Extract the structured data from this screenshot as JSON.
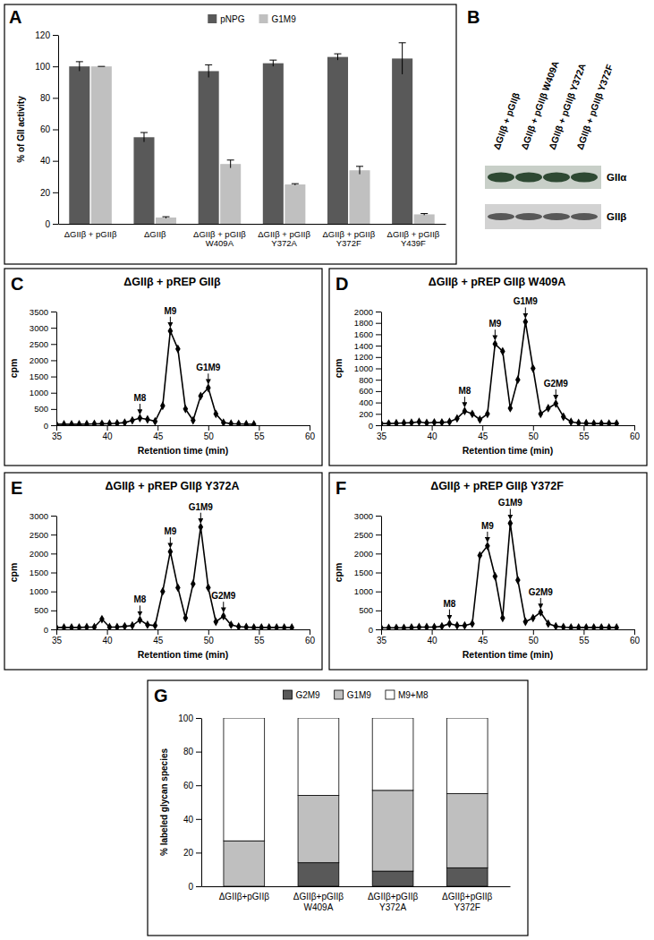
{
  "chart_data": [
    {
      "type": "bar",
      "panel": "A",
      "categories": [
        "ΔGIIβ + pGIIβ",
        "ΔGIIβ",
        "ΔGIIβ + pGIIβ W409A",
        "ΔGIIβ + pGIIβ Y372A",
        "ΔGIIβ + pGIIβ Y372F",
        "ΔGIIβ + pGIIβ Y439F"
      ],
      "series": [
        {
          "name": "pNPG",
          "color": "#595959",
          "values": [
            100,
            55,
            97,
            102,
            106,
            105
          ],
          "errors": [
            3,
            3,
            4,
            2,
            2,
            10
          ]
        },
        {
          "name": "G1M9",
          "color": "#c0c0c0",
          "values": [
            100,
            4,
            38,
            25,
            34,
            6
          ],
          "errors": [
            0,
            0.5,
            2.5,
            0.5,
            2.5,
            0.5
          ]
        }
      ],
      "y_label": "% of GII activity",
      "ylim": [
        0,
        120
      ],
      "yticks": [
        0,
        20,
        40,
        60,
        80,
        100,
        120
      ],
      "legend": "top"
    },
    {
      "type": "line",
      "panel": "C",
      "title": "ΔGIIβ + pREP GIIβ",
      "x": [
        35,
        35.75,
        36.5,
        37.25,
        38,
        38.75,
        39.5,
        40.25,
        41,
        41.75,
        42.5,
        43.25,
        44,
        44.75,
        45.5,
        46.25,
        47,
        47.75,
        48.5,
        49.25,
        50,
        50.75,
        51.5,
        52.25,
        53,
        53.75,
        54.5
      ],
      "series": [
        {
          "color": "#000000",
          "marker": "diamond",
          "values": [
            30,
            30,
            30,
            30,
            35,
            40,
            45,
            50,
            60,
            80,
            150,
            220,
            180,
            120,
            600,
            2900,
            2350,
            500,
            150,
            900,
            1150,
            350,
            80,
            50,
            40,
            35,
            30
          ]
        }
      ],
      "x_label": "Retention time (min)",
      "y_label": "cpm",
      "xlim": [
        35,
        60
      ],
      "xticks": [
        35,
        40,
        45,
        50,
        55,
        60
      ],
      "ylim": [
        0,
        3500
      ],
      "yticks": [
        0,
        500,
        1000,
        1500,
        2000,
        2500,
        3000,
        3500
      ],
      "peaks": [
        {
          "label": "M8",
          "x": 43.25
        },
        {
          "label": "M9",
          "x": 46.25
        },
        {
          "label": "G1M9",
          "x": 50
        }
      ]
    },
    {
      "type": "line",
      "panel": "D",
      "title": "ΔGIIβ + pREP GIIβ W409A",
      "x": [
        35,
        35.75,
        36.5,
        37.25,
        38,
        38.75,
        39.5,
        40.25,
        41,
        41.75,
        42.5,
        43.25,
        44,
        44.75,
        45.5,
        46.25,
        47,
        47.75,
        48.5,
        49.25,
        50,
        50.75,
        51.5,
        52.25,
        53,
        53.75,
        54.5,
        55.25,
        56,
        56.75,
        57.5,
        58.25
      ],
      "series": [
        {
          "color": "#000000",
          "marker": "diamond",
          "values": [
            30,
            30,
            35,
            40,
            45,
            60,
            40,
            50,
            50,
            60,
            120,
            250,
            200,
            100,
            200,
            1430,
            1300,
            300,
            800,
            1820,
            1000,
            200,
            300,
            380,
            150,
            60,
            40,
            35,
            30,
            30,
            30,
            30
          ]
        }
      ],
      "x_label": "Retention time (min)",
      "y_label": "cpm",
      "xlim": [
        35,
        60
      ],
      "xticks": [
        35,
        40,
        45,
        50,
        55,
        60
      ],
      "ylim": [
        0,
        2000
      ],
      "yticks": [
        0,
        200,
        400,
        600,
        800,
        1000,
        1200,
        1400,
        1600,
        1800,
        2000
      ],
      "peaks": [
        {
          "label": "M8",
          "x": 43.25
        },
        {
          "label": "M9",
          "x": 46.25
        },
        {
          "label": "G1M9",
          "x": 49.25
        },
        {
          "label": "G2M9",
          "x": 52.25
        }
      ]
    },
    {
      "type": "line",
      "panel": "E",
      "title": "ΔGIIβ + pREP GIIβ Y372A",
      "x": [
        35,
        35.75,
        36.5,
        37.25,
        38,
        38.75,
        39.5,
        40.25,
        41,
        41.75,
        42.5,
        43.25,
        44,
        44.75,
        45.5,
        46.25,
        47,
        47.75,
        48.5,
        49.25,
        50,
        50.75,
        51.5,
        52.25,
        53,
        53.75,
        54.5,
        55.25,
        56,
        56.75,
        57.5,
        58.25
      ],
      "series": [
        {
          "color": "#000000",
          "marker": "diamond",
          "values": [
            50,
            50,
            50,
            50,
            60,
            60,
            270,
            60,
            60,
            80,
            100,
            250,
            120,
            100,
            1000,
            2050,
            1100,
            300,
            1200,
            2700,
            1100,
            200,
            350,
            120,
            70,
            60,
            50,
            50,
            50,
            50,
            50,
            50
          ]
        }
      ],
      "x_label": "Retention time (min)",
      "y_label": "cpm",
      "xlim": [
        35,
        60
      ],
      "xticks": [
        35,
        40,
        45,
        50,
        55,
        60
      ],
      "ylim": [
        0,
        3000
      ],
      "yticks": [
        0,
        500,
        1000,
        1500,
        2000,
        2500,
        3000
      ],
      "peaks": [
        {
          "label": "M8",
          "x": 43.25
        },
        {
          "label": "M9",
          "x": 46.25
        },
        {
          "label": "G1M9",
          "x": 49.25
        },
        {
          "label": "G2M9",
          "x": 51.5
        }
      ]
    },
    {
      "type": "line",
      "panel": "F",
      "title": "ΔGIIβ + pREP GIIβ Y372F",
      "x": [
        35,
        35.75,
        36.5,
        37.25,
        38,
        38.75,
        39.5,
        40.25,
        41,
        41.75,
        42.5,
        43.25,
        44,
        44.75,
        45.5,
        46.25,
        47,
        47.75,
        48.5,
        49.25,
        50,
        50.75,
        51.5,
        52.25,
        53,
        53.75,
        54.5,
        55.25,
        56,
        56.75,
        57.5,
        58.25
      ],
      "series": [
        {
          "color": "#000000",
          "marker": "diamond",
          "values": [
            40,
            40,
            40,
            40,
            50,
            60,
            60,
            60,
            80,
            150,
            100,
            100,
            150,
            1950,
            2200,
            1400,
            300,
            2800,
            1300,
            200,
            300,
            450,
            150,
            80,
            60,
            50,
            50,
            50,
            50,
            50,
            50,
            50
          ]
        }
      ],
      "x_label": "Retention time (min)",
      "y_label": "cpm",
      "xlim": [
        35,
        60
      ],
      "xticks": [
        35,
        40,
        45,
        50,
        55,
        60
      ],
      "ylim": [
        0,
        3000
      ],
      "yticks": [
        0,
        500,
        1000,
        1500,
        2000,
        2500,
        3000
      ],
      "peaks": [
        {
          "label": "M8",
          "x": 41.75
        },
        {
          "label": "M9",
          "x": 45.5
        },
        {
          "label": "G1M9",
          "x": 47.75
        },
        {
          "label": "G2M9",
          "x": 50.75
        }
      ]
    },
    {
      "type": "bar",
      "panel": "G",
      "stacked": true,
      "categories": [
        "ΔGIIβ+pGIIβ",
        "ΔGIIβ+pGIIβ W409A",
        "ΔGIIβ+pGIIβ Y372A",
        "ΔGIIβ+pGIIβ Y372F"
      ],
      "series": [
        {
          "name": "G2M9",
          "color": "#595959",
          "values": [
            0,
            14,
            9,
            11
          ]
        },
        {
          "name": "G1M9",
          "color": "#bfbfbf",
          "values": [
            27,
            40,
            48,
            44
          ]
        },
        {
          "name": "M9+M8",
          "color": "#ffffff",
          "values": [
            73,
            46,
            43,
            45
          ]
        }
      ],
      "y_label": "% labeled glycan species",
      "ylim": [
        0,
        100
      ],
      "yticks": [
        0,
        20,
        40,
        60,
        80,
        100
      ],
      "legend": "top"
    }
  ],
  "blot": {
    "panel": "B",
    "lanes": [
      "ΔGIIβ + pGIIβ",
      "ΔGIIβ + pGIIβ W409A",
      "ΔGIIβ + pGIIβ Y372A",
      "ΔGIIβ + pGIIβ Y372F"
    ],
    "bands": [
      "GIIα",
      "GIIβ"
    ]
  }
}
